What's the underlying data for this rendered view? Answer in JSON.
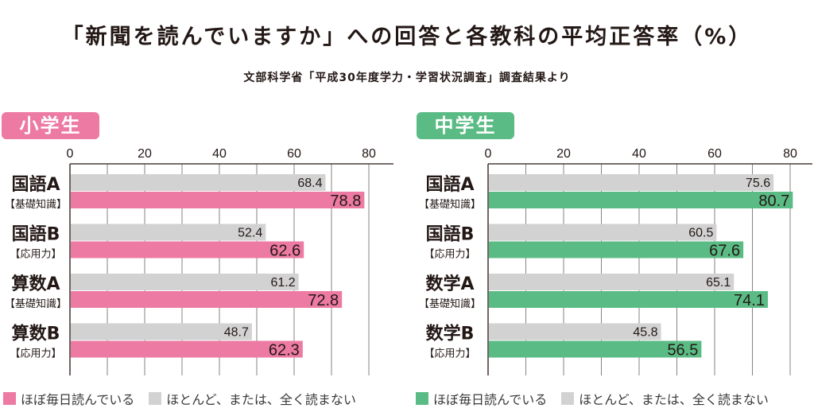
{
  "title": "「新聞を読んでいますか」への回答と各教科の平均正答率（%）",
  "subtitle": "文部科学省「平成30年度学力・学習状況調査」調査結果より",
  "colors": {
    "pink": "#ec7aa2",
    "green": "#5bbb84",
    "grey": "#d2d2d2",
    "axis": "#4a3f3a"
  },
  "chart_data": [
    {
      "type": "bar",
      "orientation": "horizontal",
      "title": "小学生",
      "xlim": [
        0,
        80
      ],
      "xticks": [
        0,
        20,
        40,
        60,
        80
      ],
      "grid": true,
      "categories": [
        {
          "name": "国語A",
          "sub": "【基礎知識】"
        },
        {
          "name": "国語B",
          "sub": "【応用力】"
        },
        {
          "name": "算数A",
          "sub": "【基礎知識】"
        },
        {
          "name": "算数B",
          "sub": "【応用力】"
        }
      ],
      "series": [
        {
          "name": "ほとんど、または、全く読まない",
          "color": "#d2d2d2",
          "values": [
            68.4,
            52.4,
            61.2,
            48.7
          ]
        },
        {
          "name": "ほぼ毎日読んでいる",
          "color": "#ec7aa2",
          "values": [
            78.8,
            62.6,
            72.8,
            62.3
          ]
        }
      ],
      "legend": [
        {
          "label": "ほぼ毎日読んでいる",
          "color": "#ec7aa2"
        },
        {
          "label": "ほとんど、または、全く読まない",
          "color": "#d2d2d2"
        }
      ],
      "legend_position": "bottom"
    },
    {
      "type": "bar",
      "orientation": "horizontal",
      "title": "中学生",
      "xlim": [
        0,
        80
      ],
      "xticks": [
        0,
        20,
        40,
        60,
        80
      ],
      "grid": true,
      "categories": [
        {
          "name": "国語A",
          "sub": "【基礎知識】"
        },
        {
          "name": "国語B",
          "sub": "【応用力】"
        },
        {
          "name": "数学A",
          "sub": "【基礎知識】"
        },
        {
          "name": "数学B",
          "sub": "【応用力】"
        }
      ],
      "series": [
        {
          "name": "ほとんど、または、全く読まない",
          "color": "#d2d2d2",
          "values": [
            75.6,
            60.5,
            65.1,
            45.8
          ]
        },
        {
          "name": "ほぼ毎日読んでいる",
          "color": "#5bbb84",
          "values": [
            80.7,
            67.6,
            74.1,
            56.5
          ]
        }
      ],
      "legend": [
        {
          "label": "ほぼ毎日読んでいる",
          "color": "#5bbb84"
        },
        {
          "label": "ほとんど、または、全く読まない",
          "color": "#d2d2d2"
        }
      ],
      "legend_position": "bottom"
    }
  ]
}
